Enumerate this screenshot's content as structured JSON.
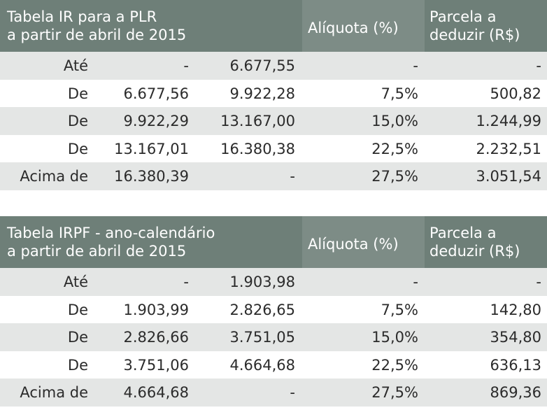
{
  "tables": [
    {
      "title_line1": "Tabela IR para a PLR",
      "title_line2": "a partir de abril de 2015",
      "col_aliquota": "Alíquota (%)",
      "col_parcela_line1": "Parcela a",
      "col_parcela_line2": "deduzir (R$)",
      "rows": [
        {
          "label": "Até",
          "from": "-",
          "to": "6.677,55",
          "aliquota": "-",
          "parcela": "-"
        },
        {
          "label": "De",
          "from": "6.677,56",
          "to": "9.922,28",
          "aliquota": "7,5%",
          "parcela": "500,82"
        },
        {
          "label": "De",
          "from": "9.922,29",
          "to": "13.167,00",
          "aliquota": "15,0%",
          "parcela": "1.244,99"
        },
        {
          "label": "De",
          "from": "13.167,01",
          "to": "16.380,38",
          "aliquota": "22,5%",
          "parcela": "2.232,51"
        },
        {
          "label": "Acima de",
          "from": "16.380,39",
          "to": "-",
          "aliquota": "27,5%",
          "parcela": "3.051,54"
        }
      ]
    },
    {
      "title_line1": "Tabela IRPF - ano-calendário",
      "title_line2": "a partir de abril de 2015",
      "col_aliquota": "Alíquota (%)",
      "col_parcela_line1": "Parcela a",
      "col_parcela_line2": "deduzir (R$)",
      "rows": [
        {
          "label": "Até",
          "from": "-",
          "to": "1.903,98",
          "aliquota": "-",
          "parcela": "-"
        },
        {
          "label": "De",
          "from": "1.903,99",
          "to": "2.826,65",
          "aliquota": "7,5%",
          "parcela": "142,80"
        },
        {
          "label": "De",
          "from": "2.826,66",
          "to": "3.751,05",
          "aliquota": "15,0%",
          "parcela": "354,80"
        },
        {
          "label": "De",
          "from": "3.751,06",
          "to": "4.664,68",
          "aliquota": "22,5%",
          "parcela": "636,13"
        },
        {
          "label": "Acima de",
          "from": "4.664,68",
          "to": "-",
          "aliquota": "27,5%",
          "parcela": "869,36"
        }
      ]
    }
  ]
}
